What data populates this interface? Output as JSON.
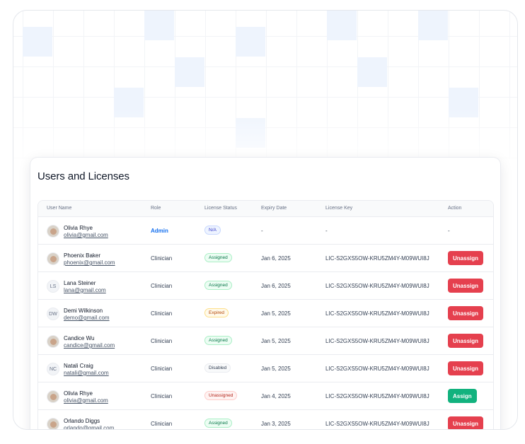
{
  "page_title": "Users and Licenses",
  "colors": {
    "unassign_button": "#e5404e",
    "assign_button": "#12b27e",
    "admin_role": "#1570ef"
  },
  "table": {
    "headers": {
      "user_name": "User Name",
      "role": "Role",
      "license_status": "License Status",
      "expiry_date": "Expiry Date",
      "license_key": "License Key",
      "action": "Action"
    },
    "rows": [
      {
        "avatar": "photo",
        "initials": "",
        "name": "Olivia Rhye",
        "email": "olivia@gmail.com",
        "role": "Admin",
        "status": "N/A",
        "status_kind": "neutral",
        "expiry": "-",
        "key": "-",
        "action": "-"
      },
      {
        "avatar": "photo",
        "initials": "",
        "name": "Phoenix Baker",
        "email": "phoenix@gmail.com",
        "role": "Clinician",
        "status": "Assigned",
        "status_kind": "success",
        "expiry": "Jan 6, 2025",
        "key": "LIC-S2GXS5OW-KRU5ZM4Y-M09WUI8J",
        "action": "Unassign"
      },
      {
        "avatar": "initials",
        "initials": "LS",
        "name": "Lana Steiner",
        "email": "lana@gmail.com",
        "role": "Clinician",
        "status": "Assigned",
        "status_kind": "success",
        "expiry": "Jan 6, 2025",
        "key": "LIC-S2GXS5OW-KRU5ZM4Y-M09WUI8J",
        "action": "Unassign"
      },
      {
        "avatar": "initials",
        "initials": "DW",
        "name": "Demi Wilkinson",
        "email": "demo@gmail.com",
        "role": "Clinician",
        "status": "Expired",
        "status_kind": "warning",
        "expiry": "Jan 5, 2025",
        "key": "LIC-S2GXS5OW-KRU5ZM4Y-M09WUI8J",
        "action": "Unassign"
      },
      {
        "avatar": "photo",
        "initials": "",
        "name": "Candice Wu",
        "email": "candice@gmail.com",
        "role": "Clinician",
        "status": "Assigned",
        "status_kind": "success",
        "expiry": "Jan 5, 2025",
        "key": "LIC-S2GXS5OW-KRU5ZM4Y-M09WUI8J",
        "action": "Unassign"
      },
      {
        "avatar": "initials",
        "initials": "NC",
        "name": "Natali Craig",
        "email": "natali@gmail.com",
        "role": "Clinician",
        "status": "Disabled",
        "status_kind": "gray",
        "expiry": "Jan 5, 2025",
        "key": "LIC-S2GXS5OW-KRU5ZM4Y-M09WUI8J",
        "action": "Unassign"
      },
      {
        "avatar": "photo",
        "initials": "",
        "name": "Olivia Rhye",
        "email": "olivia@gmail.com",
        "role": "Clinician",
        "status": "Unassigned",
        "status_kind": "error",
        "expiry": "Jan 4, 2025",
        "key": "LIC-S2GXS5OW-KRU5ZM4Y-M09WUI8J",
        "action": "Assign"
      },
      {
        "avatar": "photo",
        "initials": "",
        "name": "Orlando Diggs",
        "email": "orlando@gmail.com",
        "role": "Clinician",
        "status": "Assigned",
        "status_kind": "success",
        "expiry": "Jan 3, 2025",
        "key": "LIC-S2GXS5OW-KRU5ZM4Y-M09WUI8J",
        "action": "Unassign"
      }
    ]
  }
}
